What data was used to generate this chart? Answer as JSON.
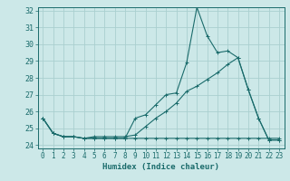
{
  "xlabel": "Humidex (Indice chaleur)",
  "bg_color": "#cce8e8",
  "grid_color": "#aacfcf",
  "line_color": "#1a6b6b",
  "xlim": [
    -0.5,
    23.5
  ],
  "ylim": [
    23.8,
    32.2
  ],
  "yticks": [
    24,
    25,
    26,
    27,
    28,
    29,
    30,
    31,
    32
  ],
  "xticks": [
    0,
    1,
    2,
    3,
    4,
    5,
    6,
    7,
    8,
    9,
    10,
    11,
    12,
    13,
    14,
    15,
    16,
    17,
    18,
    19,
    20,
    21,
    22,
    23
  ],
  "line1_x": [
    0,
    1,
    2,
    3,
    4,
    5,
    6,
    7,
    8,
    9,
    10,
    11,
    12,
    13,
    14,
    15,
    16,
    17,
    18,
    19,
    20,
    21,
    22,
    23
  ],
  "line1_y": [
    25.6,
    24.7,
    24.5,
    24.5,
    24.4,
    24.4,
    24.4,
    24.4,
    24.4,
    25.6,
    25.8,
    26.4,
    27.0,
    27.1,
    28.9,
    32.2,
    30.5,
    29.5,
    29.6,
    29.2,
    27.3,
    25.6,
    24.3,
    24.3
  ],
  "line2_x": [
    0,
    1,
    2,
    3,
    4,
    5,
    6,
    7,
    8,
    9,
    10,
    11,
    12,
    13,
    14,
    15,
    16,
    17,
    18,
    19,
    20,
    21,
    22,
    23
  ],
  "line2_y": [
    25.6,
    24.7,
    24.5,
    24.5,
    24.4,
    24.4,
    24.4,
    24.4,
    24.4,
    24.4,
    24.4,
    24.4,
    24.4,
    24.4,
    24.4,
    24.4,
    24.4,
    24.4,
    24.4,
    24.4,
    24.4,
    24.4,
    24.4,
    24.4
  ],
  "line3_x": [
    0,
    1,
    2,
    3,
    4,
    5,
    6,
    7,
    8,
    9,
    10,
    11,
    12,
    13,
    14,
    15,
    16,
    17,
    18,
    19,
    20,
    21,
    22,
    23
  ],
  "line3_y": [
    25.6,
    24.7,
    24.5,
    24.5,
    24.4,
    24.5,
    24.5,
    24.5,
    24.5,
    24.6,
    25.1,
    25.6,
    26.0,
    26.5,
    27.2,
    27.5,
    27.9,
    28.3,
    28.8,
    29.2,
    27.3,
    25.6,
    24.3,
    24.3
  ]
}
